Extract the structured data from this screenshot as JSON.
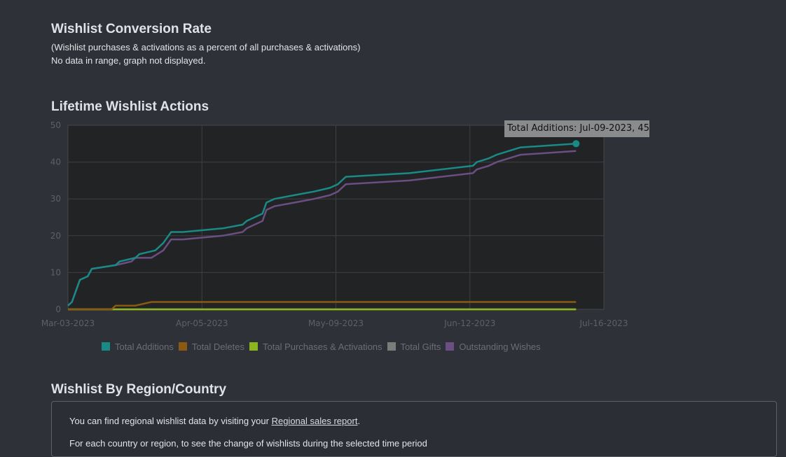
{
  "sections": {
    "conversion": {
      "title": "Wishlist Conversion Rate",
      "subtitle": "(Wishlist purchases & activations as a percent of all purchases & activations)",
      "no_data": "No data in range, graph not displayed."
    },
    "lifetime": {
      "title": "Lifetime Wishlist Actions"
    },
    "region": {
      "title": "Wishlist By Region/Country",
      "text_before": "You can find regional wishlist data by visiting your ",
      "link": "Regional sales report",
      "text_after": ".",
      "text2": "For each country or region, to see the change of wishlists during the selected time period"
    }
  },
  "tooltip": {
    "text": "Total Additions: Jul-09-2023, 45"
  },
  "colors": {
    "total_additions": "#1a8a86",
    "total_deletes": "#8a5a10",
    "total_purchases": "#8db51d",
    "total_gifts": "#7c7c7c",
    "outstanding": "#6b4f82"
  },
  "chart_data": {
    "type": "line",
    "title": "Lifetime Wishlist Actions",
    "x_axis": {
      "type": "date",
      "range": [
        "2023-03-03",
        "2023-07-16"
      ],
      "ticks": [
        "Mar-03-2023",
        "Apr-05-2023",
        "May-09-2023",
        "Jun-12-2023",
        "Jul-16-2023"
      ]
    },
    "y_axis": {
      "range": [
        0,
        50
      ],
      "ticks": [
        0,
        10,
        20,
        30,
        40,
        50
      ]
    },
    "grid": true,
    "legend_position": "bottom",
    "series": [
      {
        "name": "Total Additions",
        "color_key": "total_additions",
        "points": [
          [
            "2023-03-03",
            1
          ],
          [
            "2023-03-04",
            2
          ],
          [
            "2023-03-06",
            8
          ],
          [
            "2023-03-08",
            9
          ],
          [
            "2023-03-09",
            11
          ],
          [
            "2023-03-15",
            12
          ],
          [
            "2023-03-16",
            13
          ],
          [
            "2023-03-20",
            14
          ],
          [
            "2023-03-21",
            15
          ],
          [
            "2023-03-25",
            16
          ],
          [
            "2023-03-27",
            18
          ],
          [
            "2023-03-29",
            21
          ],
          [
            "2023-04-01",
            21
          ],
          [
            "2023-04-11",
            22
          ],
          [
            "2023-04-16",
            23
          ],
          [
            "2023-04-17",
            24
          ],
          [
            "2023-04-21",
            26
          ],
          [
            "2023-04-22",
            29
          ],
          [
            "2023-04-24",
            30
          ],
          [
            "2023-04-29",
            31
          ],
          [
            "2023-05-04",
            32
          ],
          [
            "2023-05-08",
            33
          ],
          [
            "2023-05-10",
            34
          ],
          [
            "2023-05-12",
            36
          ],
          [
            "2023-05-28",
            37
          ],
          [
            "2023-06-13",
            39
          ],
          [
            "2023-06-14",
            40
          ],
          [
            "2023-06-17",
            41
          ],
          [
            "2023-06-19",
            42
          ],
          [
            "2023-06-22",
            43
          ],
          [
            "2023-06-25",
            44
          ],
          [
            "2023-07-09",
            45
          ]
        ]
      },
      {
        "name": "Total Deletes",
        "color_key": "total_deletes",
        "points": [
          [
            "2023-03-03",
            0
          ],
          [
            "2023-03-14",
            0
          ],
          [
            "2023-03-15",
            1
          ],
          [
            "2023-03-20",
            1
          ],
          [
            "2023-03-24",
            2
          ],
          [
            "2023-07-09",
            2
          ]
        ]
      },
      {
        "name": "Total Purchases & Activations",
        "color_key": "total_purchases",
        "points": [
          [
            "2023-03-03",
            0
          ],
          [
            "2023-07-09",
            0
          ]
        ]
      },
      {
        "name": "Total Gifts",
        "color_key": "total_gifts",
        "points": [
          [
            "2023-03-03",
            0
          ],
          [
            "2023-07-09",
            0
          ]
        ]
      },
      {
        "name": "Outstanding Wishes",
        "color_key": "outstanding",
        "points": [
          [
            "2023-03-03",
            1
          ],
          [
            "2023-03-04",
            2
          ],
          [
            "2023-03-06",
            8
          ],
          [
            "2023-03-08",
            9
          ],
          [
            "2023-03-09",
            11
          ],
          [
            "2023-03-15",
            12
          ],
          [
            "2023-03-19",
            13
          ],
          [
            "2023-03-20",
            14
          ],
          [
            "2023-03-24",
            14
          ],
          [
            "2023-03-27",
            16
          ],
          [
            "2023-03-29",
            19
          ],
          [
            "2023-04-01",
            19
          ],
          [
            "2023-04-11",
            20
          ],
          [
            "2023-04-16",
            21
          ],
          [
            "2023-04-17",
            22
          ],
          [
            "2023-04-21",
            24
          ],
          [
            "2023-04-22",
            27
          ],
          [
            "2023-04-24",
            28
          ],
          [
            "2023-04-29",
            29
          ],
          [
            "2023-05-04",
            30
          ],
          [
            "2023-05-08",
            31
          ],
          [
            "2023-05-10",
            32
          ],
          [
            "2023-05-12",
            34
          ],
          [
            "2023-05-28",
            35
          ],
          [
            "2023-06-13",
            37
          ],
          [
            "2023-06-14",
            38
          ],
          [
            "2023-06-17",
            39
          ],
          [
            "2023-06-19",
            40
          ],
          [
            "2023-06-22",
            41
          ],
          [
            "2023-06-25",
            42
          ],
          [
            "2023-07-09",
            43
          ]
        ]
      }
    ],
    "tooltip_point": {
      "series": "Total Additions",
      "date": "2023-07-09",
      "value": 45
    }
  }
}
